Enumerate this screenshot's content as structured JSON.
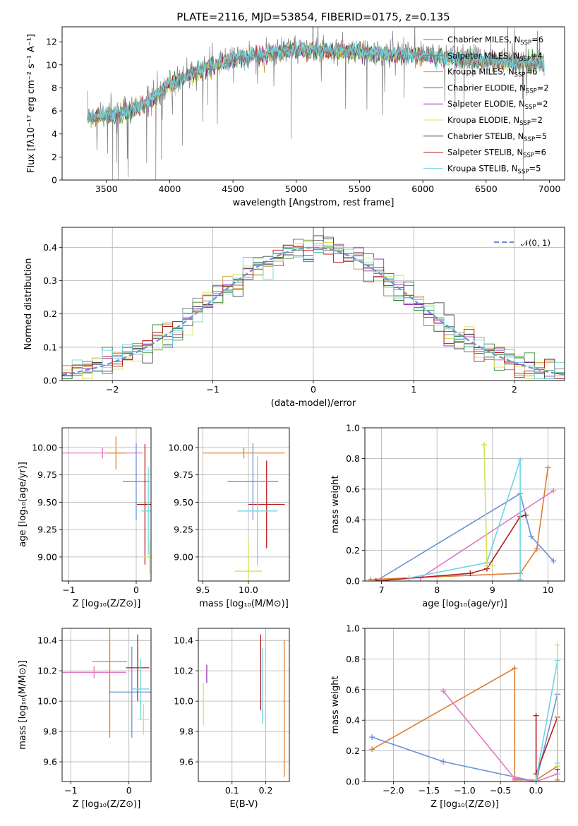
{
  "title": "PLATE=2116, MJD=53854, FIBERID=0175, z=0.135",
  "models": [
    {
      "name": "Chabrier MILES",
      "nssp": "6",
      "color": "#3a923a"
    },
    {
      "name": "Salpeter MILES",
      "nssp": "4",
      "color": "#7f7f7f"
    },
    {
      "name": "Kroupa MILES",
      "nssp": "6",
      "color": "#c89b3c"
    },
    {
      "name": "Chabrier ELODIE",
      "nssp": "2",
      "color": "#2e7d32"
    },
    {
      "name": "Salpeter ELODIE",
      "nssp": "2",
      "color": "#9b30b0"
    },
    {
      "name": "Kroupa ELODIE",
      "nssp": "2",
      "color": "#d4e157"
    },
    {
      "name": "Chabrier STELIB",
      "nssp": "5",
      "color": "#444444"
    },
    {
      "name": "Salpeter STELIB",
      "nssp": "6",
      "color": "#b71c1c"
    },
    {
      "name": "Kroupa STELIB",
      "nssp": "5",
      "color": "#6fd6e0"
    }
  ],
  "chart_data": [
    {
      "type": "line",
      "xlabel": "wavelength [Angstrom, rest frame]",
      "ylabel": "Flux [fλ10⁻¹⁷ erg cm⁻² s⁻¹ A⁻¹]",
      "xlim": [
        3150,
        7120
      ],
      "ylim": [
        0,
        13.3
      ],
      "xticks": [
        3500,
        4000,
        4500,
        5000,
        5500,
        6000,
        6500,
        7000
      ],
      "yticks": [
        0,
        2,
        4,
        6,
        8,
        10,
        12
      ],
      "legend": "upper-right",
      "continuum": {
        "x": [
          3350,
          3500,
          3600,
          3800,
          4000,
          4200,
          4500,
          4800,
          5000,
          5500,
          6000,
          6500,
          6950
        ],
        "y": [
          5.6,
          5.7,
          5.9,
          6.6,
          8.4,
          9.4,
          10.6,
          11.1,
          11.4,
          11.2,
          10.9,
          10.5,
          10.2
        ]
      }
    },
    {
      "type": "line",
      "xlabel": "(data-model)/error",
      "ylabel": "Normed distribution",
      "xlim": [
        -2.5,
        2.5
      ],
      "ylim": [
        0,
        0.46
      ],
      "xticks": [
        -2,
        -1,
        0,
        1,
        2
      ],
      "yticks": [
        0.0,
        0.1,
        0.2,
        0.3,
        0.4
      ],
      "legend": "upper-right",
      "legend_label": "𝒩(0, 1)",
      "gaussian": {
        "mu": 0,
        "sigma": 1
      }
    },
    {
      "type": "scatter",
      "xlabel": "Z [log₁₀(Z/Z⊙)]",
      "ylabel": "age  [log₁₀(age/yr)]",
      "xlim": [
        -1.1,
        0.22
      ],
      "ylim": [
        8.78,
        10.18
      ],
      "xticks": [
        -1,
        0
      ],
      "yticks": [
        9.0,
        9.25,
        9.5,
        9.75,
        10.0
      ],
      "points": [
        {
          "x": -0.5,
          "xerr": 0.6,
          "y": 9.95,
          "yerr": 0.05,
          "c": "#e377c2"
        },
        {
          "x": -0.3,
          "xerr": 0.15,
          "y": 9.95,
          "yerr": 0.15,
          "c": "#dd7f33"
        },
        {
          "x": 0.0,
          "xerr": 0.2,
          "y": 9.69,
          "yerr": 0.35,
          "c": "#6a93d8"
        },
        {
          "x": 0.13,
          "xerr": 0.12,
          "y": 9.48,
          "yerr": 0.55,
          "c": "#b71c1c"
        },
        {
          "x": 0.18,
          "xerr": 0.1,
          "y": 9.42,
          "yerr": 0.4,
          "c": "#6fd6e0"
        },
        {
          "x": 0.2,
          "xerr": 0.08,
          "y": 9.0,
          "yerr": 0.15,
          "c": "#d4e157"
        }
      ]
    },
    {
      "type": "scatter",
      "xlabel": "mass [log₁₀(M/M⊙)]",
      "ylabel": "",
      "xlim": [
        9.45,
        10.45
      ],
      "ylim": [
        8.78,
        10.18
      ],
      "xticks": [
        9.5,
        10.0
      ],
      "yticks": [
        9.0,
        9.25,
        9.5,
        9.75,
        10.0
      ],
      "points": [
        {
          "x": 9.95,
          "xerr": 0.45,
          "y": 9.95,
          "yerr": 0.05,
          "c": "#dd7f33"
        },
        {
          "x": 10.2,
          "xerr": 0.2,
          "y": 9.48,
          "yerr": 0.4,
          "c": "#b71c1c"
        },
        {
          "x": 10.05,
          "xerr": 0.28,
          "y": 9.69,
          "yerr": 0.35,
          "c": "#6a93d8"
        },
        {
          "x": 10.1,
          "xerr": 0.22,
          "y": 9.42,
          "yerr": 0.5,
          "c": "#6fd6e0"
        },
        {
          "x": 10.0,
          "xerr": 0.15,
          "y": 8.87,
          "yerr": 0.3,
          "c": "#d4e157"
        }
      ]
    },
    {
      "type": "line",
      "xlabel": "age  [log₁₀(age/yr)]",
      "ylabel": "mass weight",
      "xlim": [
        6.7,
        10.3
      ],
      "ylim": [
        0,
        1
      ],
      "xticks": [
        7,
        8,
        9,
        10
      ],
      "yticks": [
        0.0,
        0.2,
        0.4,
        0.6,
        0.8,
        1.0
      ],
      "series": [
        {
          "x": [
            6.9,
            9.5,
            9.7,
            10.1
          ],
          "y": [
            0.0,
            0.57,
            0.29,
            0.13
          ],
          "c": "#6a93d8"
        },
        {
          "x": 7.5,
          "y": 0
        },
        {
          "x": [
            7.7,
            10.1
          ],
          "y": [
            0.02,
            0.59
          ],
          "c": "#e377c2"
        },
        {
          "x": [
            6.8,
            9.5,
            9.8,
            10.0
          ],
          "y": [
            0.01,
            0.05,
            0.21,
            0.74
          ],
          "c": "#dd7f33"
        },
        {
          "x": [
            6.9,
            8.6,
            8.9,
            9.5,
            9.6
          ],
          "y": [
            0.0,
            0.05,
            0.08,
            0.42,
            0.43
          ],
          "c": "#b71c1c"
        },
        {
          "x": [
            7.5,
            8.9,
            9.5,
            9.5
          ],
          "y": [
            0.02,
            0.12,
            0.79,
            0.01
          ],
          "c": "#6fd6e0"
        },
        {
          "x": [
            8.85,
            8.9,
            9.0
          ],
          "y": [
            0.89,
            0.1,
            0.1
          ],
          "c": "#d4e157"
        }
      ]
    },
    {
      "type": "scatter",
      "xlabel": "Z [log₁₀(Z/Z⊙)]",
      "ylabel": "mass [log₁₀(M/M⊙)]",
      "xlim": [
        -1.15,
        0.38
      ],
      "ylim": [
        9.47,
        10.48
      ],
      "xticks": [
        -1,
        0
      ],
      "yticks": [
        9.6,
        9.8,
        10.0,
        10.2,
        10.4
      ],
      "points": [
        {
          "x": -0.6,
          "xerr": 0.55,
          "y": 10.19,
          "yerr": 0.04,
          "c": "#e377c2"
        },
        {
          "x": -0.33,
          "xerr": 0.3,
          "y": 10.26,
          "yerr": 0.5,
          "c": "#dd7f33"
        },
        {
          "x": 0.05,
          "xerr": 0.4,
          "y": 10.06,
          "yerr": 0.3,
          "c": "#6a93d8"
        },
        {
          "x": 0.15,
          "xerr": 0.2,
          "y": 10.22,
          "yerr": 0.22,
          "c": "#b71c1c"
        },
        {
          "x": 0.2,
          "xerr": 0.15,
          "y": 10.08,
          "yerr": 0.2,
          "c": "#6fd6e0"
        },
        {
          "x": 0.25,
          "xerr": 0.1,
          "y": 9.88,
          "yerr": 0.1,
          "c": "#d4e157"
        }
      ]
    },
    {
      "type": "scatter",
      "xlabel": "E(B-V)",
      "ylabel": "",
      "xlim": [
        0.0,
        0.27
      ],
      "ylim": [
        9.47,
        10.48
      ],
      "xticks": [
        0.1,
        0.2
      ],
      "yticks": [
        9.6,
        9.8,
        10.0,
        10.2,
        10.4
      ],
      "points": [
        {
          "x": 0.015,
          "xerr": 0,
          "y": 9.98,
          "yerr": 0.14,
          "c": "#d4e157"
        },
        {
          "x": 0.025,
          "xerr": 0,
          "y": 10.18,
          "yerr": 0.06,
          "c": "#9b30b0"
        },
        {
          "x": 0.185,
          "xerr": 0,
          "y": 10.19,
          "yerr": 0.25,
          "c": "#b71c1c"
        },
        {
          "x": 0.19,
          "xerr": 0,
          "y": 10.1,
          "yerr": 0.25,
          "c": "#6fd6e0"
        },
        {
          "x": 0.255,
          "xerr": 0,
          "y": 9.95,
          "yerr": 0.45,
          "c": "#dd7f33"
        }
      ]
    },
    {
      "type": "line",
      "xlabel": "Z [log₁₀(Z/Z⊙)]",
      "ylabel": "mass weight",
      "xlim": [
        -2.4,
        0.4
      ],
      "ylim": [
        0,
        1
      ],
      "xticks": [
        -2.0,
        -1.5,
        -1.0,
        -0.5,
        0.0
      ],
      "yticks": [
        0.0,
        0.2,
        0.4,
        0.6,
        0.8,
        1.0
      ],
      "series": [
        {
          "x": [
            -2.3,
            -1.3,
            0.0,
            0.3
          ],
          "y": [
            0.29,
            0.13,
            0.0,
            0.57
          ],
          "c": "#6a93d8"
        },
        {
          "x": [
            -2.3,
            -0.3,
            -0.3,
            0.0,
            0.3,
            0.3
          ],
          "y": [
            0.21,
            0.74,
            0.01,
            0.01,
            0.1,
            0.01
          ],
          "c": "#dd7f33"
        },
        {
          "x": [
            -1.3,
            -0.3,
            0.0,
            0.3
          ],
          "y": [
            0.59,
            0.02,
            0.0,
            0.05
          ],
          "c": "#e377c2"
        },
        {
          "x": [
            0.0,
            0.0,
            0.3,
            0.3
          ],
          "y": [
            0.43,
            0.05,
            0.42,
            0.08
          ],
          "c": "#b71c1c"
        },
        {
          "x": [
            0.0,
            0.3,
            0.3
          ],
          "y": [
            0.01,
            0.79,
            0.12
          ],
          "c": "#6fd6e0"
        },
        {
          "x": [
            0.3,
            0.3
          ],
          "y": [
            0.89,
            0.1
          ],
          "c": "#d4e157"
        }
      ]
    }
  ]
}
